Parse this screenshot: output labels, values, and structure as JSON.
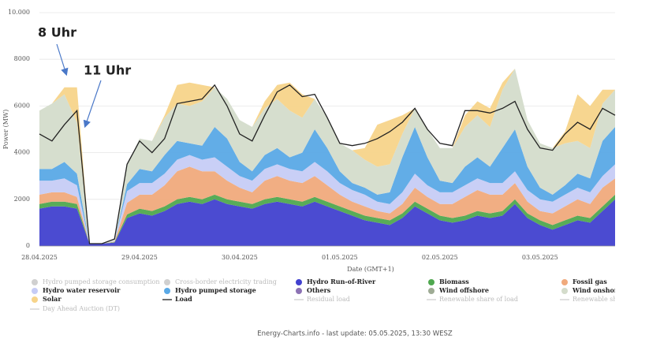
{
  "chart_data": {
    "type": "stacked_area",
    "y_label": "Power (MW)",
    "x_label": "Date (GMT+1)",
    "footer": "Energy-Charts.info - last update: 05.05.2025, 13:30 WESZ",
    "annotations": [
      "8 Uhr",
      "11 Uhr"
    ],
    "categories": [
      "28.04.2025",
      null,
      null,
      null,
      null,
      null,
      null,
      null,
      "29.04.2025",
      null,
      null,
      null,
      null,
      null,
      null,
      null,
      "30.04.2025",
      null,
      null,
      null,
      null,
      null,
      null,
      null,
      "01.05.2025",
      null,
      null,
      null,
      null,
      null,
      null,
      null,
      "02.05.2025",
      null,
      null,
      null,
      null,
      null,
      null,
      null,
      "03.05.2025",
      null,
      null,
      null,
      null,
      null,
      null
    ],
    "ylim": [
      0,
      10000
    ],
    "yticks": [
      0,
      2000,
      4000,
      6000,
      8000,
      {
        "value": 10000,
        "label": "10.000"
      }
    ],
    "grid": true,
    "series": [
      {
        "name": "Hydro pumped storage consumption",
        "color": "#c8c8c8",
        "kind": "area",
        "active": false
      },
      {
        "name": "Cross-border electricity trading",
        "color": "#c8c8c8",
        "kind": "area",
        "active": false
      },
      {
        "name": "Hydro Run-of-River",
        "color": "#4141cf",
        "kind": "area",
        "active": true,
        "values": [
          1600,
          1700,
          1700,
          1600,
          100,
          100,
          150,
          1200,
          1400,
          1300,
          1500,
          1800,
          1900,
          1800,
          2000,
          1800,
          1700,
          1600,
          1800,
          1900,
          1800,
          1700,
          1900,
          1700,
          1500,
          1300,
          1100,
          1000,
          900,
          1200,
          1700,
          1400,
          1100,
          1000,
          1100,
          1300,
          1200,
          1300,
          1800,
          1200,
          900,
          700,
          900,
          1100,
          1000,
          1500,
          2000
        ]
      },
      {
        "name": "Biomass",
        "color": "#4fa84f",
        "kind": "area",
        "active": true,
        "values": [
          200,
          200,
          200,
          200,
          0,
          0,
          20,
          150,
          200,
          200,
          200,
          200,
          200,
          200,
          200,
          200,
          200,
          200,
          200,
          200,
          200,
          200,
          200,
          200,
          200,
          200,
          200,
          200,
          200,
          200,
          200,
          200,
          200,
          200,
          200,
          200,
          200,
          200,
          200,
          200,
          200,
          200,
          200,
          200,
          200,
          200,
          200
        ]
      },
      {
        "name": "Fossil gas",
        "color": "#f0aa7c",
        "kind": "area",
        "active": true,
        "values": [
          400,
          400,
          400,
          300,
          0,
          0,
          20,
          500,
          600,
          700,
          900,
          1200,
          1300,
          1200,
          1000,
          800,
          600,
          500,
          800,
          900,
          800,
          800,
          900,
          700,
          500,
          400,
          400,
          300,
          300,
          400,
          600,
          500,
          500,
          600,
          800,
          900,
          800,
          700,
          700,
          500,
          400,
          500,
          600,
          700,
          600,
          800,
          700
        ]
      },
      {
        "name": "Hydro water reservoir",
        "color": "#c6ccf6",
        "kind": "area",
        "active": true,
        "values": [
          600,
          500,
          600,
          500,
          0,
          0,
          20,
          500,
          500,
          500,
          500,
          500,
          500,
          500,
          600,
          600,
          500,
          500,
          500,
          500,
          500,
          500,
          600,
          600,
          500,
          500,
          500,
          400,
          400,
          500,
          600,
          500,
          500,
          500,
          500,
          500,
          500,
          500,
          500,
          500,
          500,
          500,
          500,
          500,
          500,
          500,
          600
        ]
      },
      {
        "name": "Hydro pumped storage",
        "color": "#5aa9e6",
        "kind": "area",
        "active": true,
        "values": [
          500,
          500,
          700,
          500,
          0,
          0,
          0,
          300,
          600,
          500,
          800,
          800,
          500,
          600,
          1300,
          1200,
          600,
          400,
          600,
          700,
          500,
          800,
          1400,
          1000,
          500,
          300,
          300,
          300,
          500,
          1500,
          2000,
          1200,
          500,
          400,
          800,
          900,
          700,
          1500,
          1800,
          1000,
          500,
          300,
          400,
          600,
          600,
          1500,
          1600
        ]
      },
      {
        "name": "Others",
        "color": "#8c72b4",
        "kind": "area",
        "active": true
      },
      {
        "name": "Wind offshore",
        "color": "#9eab94",
        "kind": "area",
        "active": true
      },
      {
        "name": "Wind onshore",
        "color": "#d4dccb",
        "kind": "area",
        "active": true,
        "values": [
          2500,
          2800,
          2900,
          2200,
          0,
          0,
          50,
          800,
          1300,
          1300,
          1600,
          1600,
          1600,
          1900,
          1700,
          1700,
          1800,
          1900,
          2000,
          2100,
          2000,
          1500,
          1300,
          1300,
          1200,
          1400,
          1200,
          1200,
          1200,
          1000,
          800,
          1200,
          1400,
          1500,
          1700,
          1800,
          1700,
          2500,
          2600,
          2000,
          1900,
          2000,
          1800,
          1400,
          1300,
          1600,
          1600
        ]
      },
      {
        "name": "Solar",
        "color": "#f7d48a",
        "kind": "area",
        "active": true,
        "values": [
          0,
          0,
          300,
          1500,
          0,
          0,
          0,
          0,
          0,
          0,
          100,
          800,
          1000,
          700,
          0,
          0,
          0,
          0,
          300,
          600,
          1200,
          1000,
          0,
          0,
          0,
          0,
          500,
          1800,
          1900,
          800,
          0,
          0,
          0,
          0,
          500,
          600,
          800,
          300,
          0,
          0,
          0,
          0,
          500,
          2000,
          1800,
          600,
          0
        ]
      },
      {
        "name": "Load",
        "color": "#222222",
        "kind": "line",
        "active": true,
        "values": [
          4800,
          4500,
          5200,
          5800,
          100,
          100,
          300,
          3500,
          4500,
          4000,
          4600,
          6100,
          6200,
          6300,
          6900,
          6000,
          4800,
          4500,
          5600,
          6600,
          6900,
          6400,
          6500,
          5500,
          4400,
          4300,
          4400,
          4600,
          4900,
          5300,
          5900,
          5000,
          4400,
          4300,
          5800,
          5800,
          5700,
          5900,
          6200,
          5000,
          4200,
          4100,
          4800,
          5300,
          5000,
          5900,
          5600
        ]
      },
      {
        "name": "Residual load",
        "color": "#c8c8c8",
        "kind": "line",
        "active": false
      },
      {
        "name": "Renewable share of load",
        "color": "#c8c8c8",
        "kind": "line",
        "active": false
      },
      {
        "name": "Renewable sh",
        "color": "#c8c8c8",
        "kind": "line",
        "active": false
      },
      {
        "name": "Day Ahead Auction (DT)",
        "color": "#c8c8c8",
        "kind": "line",
        "active": false
      }
    ]
  }
}
